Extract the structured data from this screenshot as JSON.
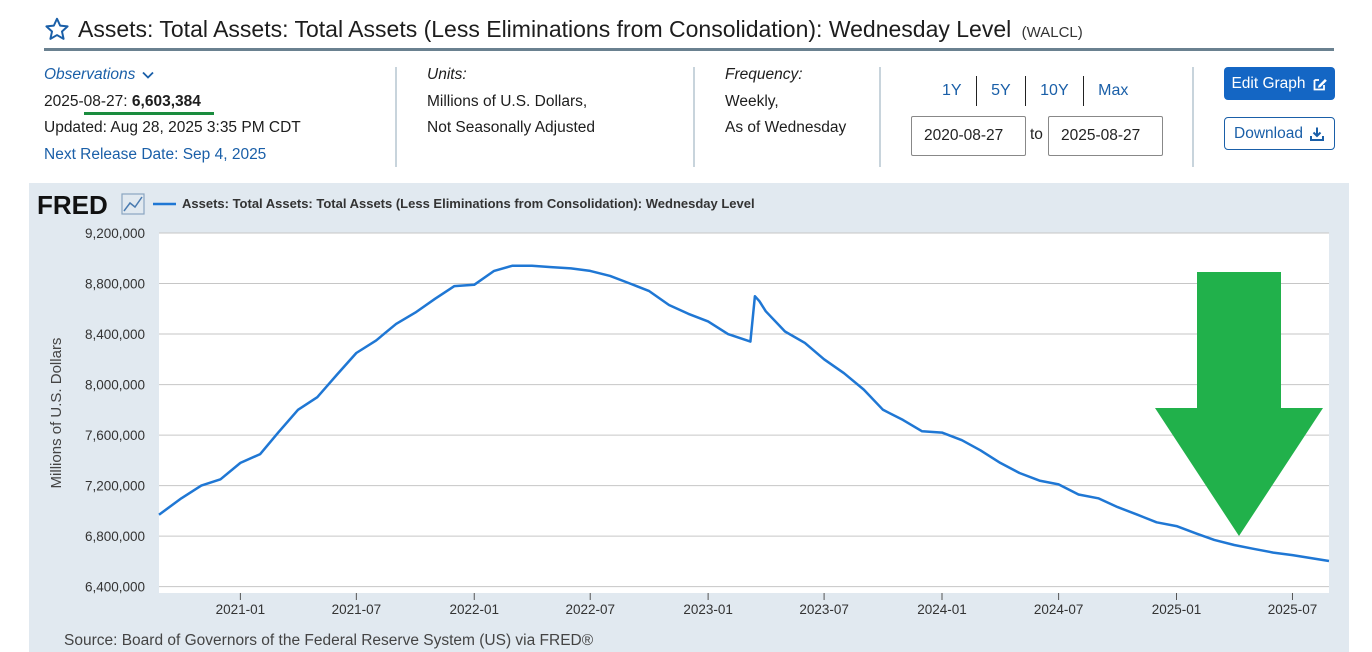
{
  "header": {
    "title": "Assets: Total Assets: Total Assets (Less Eliminations from Consolidation): Wednesday Level",
    "code": "(WALCL)"
  },
  "observations": {
    "label": "Observations",
    "date_prefix": "2025-08-27:",
    "value": "6,603,384",
    "updated": "Updated: Aug 28, 2025 3:35 PM CDT",
    "next_release": "Next Release Date: Sep 4, 2025"
  },
  "units": {
    "label": "Units:",
    "line1": "Millions of U.S. Dollars,",
    "line2": "Not Seasonally Adjusted"
  },
  "frequency": {
    "label": "Frequency:",
    "line1": "Weekly,",
    "line2": "As of Wednesday"
  },
  "range_buttons": [
    "1Y",
    "5Y",
    "10Y",
    "Max"
  ],
  "date_range": {
    "start": "2020-08-27",
    "to_label": "to",
    "end": "2025-08-27"
  },
  "buttons": {
    "edit": "Edit Graph",
    "download": "Download"
  },
  "colors": {
    "line": "#1f77d4",
    "arrow": "#21b14b",
    "accent": "#1466c4"
  },
  "source": "Source: Board of Governors of the Federal Reserve System (US) via FRED®",
  "chart_data": {
    "type": "line",
    "logo_text": "FRED",
    "legend": "Assets: Total Assets: Total Assets (Less Eliminations from Consolidation): Wednesday Level",
    "ylabel": "Millions of U.S. Dollars",
    "ylim": [
      6350000,
      9200000
    ],
    "y_ticks": [
      9200000,
      8800000,
      8400000,
      8000000,
      7600000,
      7200000,
      6800000,
      6400000
    ],
    "y_tick_labels": [
      "9,200,000",
      "8,800,000",
      "8,400,000",
      "8,000,000",
      "7,600,000",
      "7,200,000",
      "6,800,000",
      "6,400,000"
    ],
    "x_tick_labels": [
      "2021-01",
      "2021-07",
      "2022-01",
      "2022-07",
      "2023-01",
      "2023-07",
      "2024-01",
      "2024-07",
      "2025-01",
      "2025-07"
    ],
    "x_ticks": [
      "2021-01-01",
      "2021-07-01",
      "2022-01-01",
      "2022-07-01",
      "2023-01-01",
      "2023-07-01",
      "2024-01-01",
      "2024-07-01",
      "2025-01-01",
      "2025-07-01"
    ],
    "xlim": [
      "2020-08-27",
      "2025-08-27"
    ],
    "grid": true,
    "annotation": "green down arrow",
    "series": [
      {
        "name": "WALCL",
        "x": [
          "2020-08-27",
          "2020-10-01",
          "2020-11-01",
          "2020-12-01",
          "2021-01-01",
          "2021-02-01",
          "2021-03-01",
          "2021-04-01",
          "2021-05-01",
          "2021-06-01",
          "2021-07-01",
          "2021-08-01",
          "2021-09-01",
          "2021-10-01",
          "2021-11-01",
          "2021-12-01",
          "2022-01-01",
          "2022-02-01",
          "2022-03-01",
          "2022-04-01",
          "2022-05-01",
          "2022-06-01",
          "2022-07-01",
          "2022-08-01",
          "2022-09-01",
          "2022-10-01",
          "2022-11-01",
          "2022-12-01",
          "2023-01-01",
          "2023-02-01",
          "2023-03-08",
          "2023-03-15",
          "2023-03-22",
          "2023-04-01",
          "2023-05-01",
          "2023-06-01",
          "2023-07-01",
          "2023-08-01",
          "2023-09-01",
          "2023-10-01",
          "2023-11-01",
          "2023-12-01",
          "2024-01-01",
          "2024-02-01",
          "2024-03-01",
          "2024-04-01",
          "2024-05-01",
          "2024-06-01",
          "2024-07-01",
          "2024-08-01",
          "2024-09-01",
          "2024-10-01",
          "2024-11-01",
          "2024-12-01",
          "2025-01-01",
          "2025-02-01",
          "2025-03-01",
          "2025-04-01",
          "2025-05-01",
          "2025-06-01",
          "2025-07-01",
          "2025-08-27"
        ],
        "values": [
          6970000,
          7100000,
          7200000,
          7250000,
          7380000,
          7450000,
          7620000,
          7800000,
          7900000,
          8080000,
          8250000,
          8350000,
          8480000,
          8570000,
          8680000,
          8780000,
          8790000,
          8900000,
          8940000,
          8940000,
          8930000,
          8920000,
          8900000,
          8860000,
          8800000,
          8740000,
          8630000,
          8560000,
          8500000,
          8400000,
          8340000,
          8700000,
          8660000,
          8580000,
          8420000,
          8330000,
          8200000,
          8090000,
          7960000,
          7800000,
          7720000,
          7630000,
          7620000,
          7560000,
          7480000,
          7380000,
          7300000,
          7240000,
          7210000,
          7130000,
          7100000,
          7030000,
          6970000,
          6910000,
          6880000,
          6820000,
          6770000,
          6730000,
          6700000,
          6670000,
          6650000,
          6603384
        ]
      }
    ]
  }
}
